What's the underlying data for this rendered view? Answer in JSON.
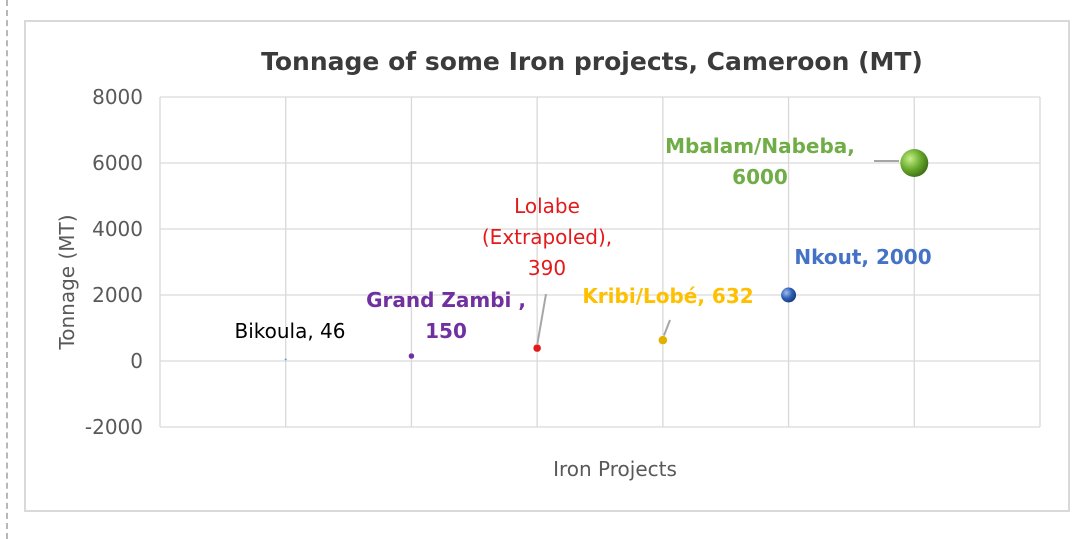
{
  "chart_data": {
    "type": "scatter",
    "title": "Tonnage of some Iron projects, Cameroon (MT)",
    "xlabel": "Iron Projects",
    "ylabel": "Tonnage (MT)",
    "ylim": [
      -2000,
      8000
    ],
    "yticks": [
      8000,
      6000,
      4000,
      2000,
      0,
      -2000
    ],
    "xlim": [
      0,
      7
    ],
    "grid": true,
    "points": [
      {
        "x": 1,
        "y": 46,
        "label_lines": [
          "Bikoula, 46"
        ],
        "color": "#5b9bd5",
        "label_color": "#000000",
        "bold": false
      },
      {
        "x": 2,
        "y": 150,
        "label_lines": [
          "Grand Zambi ,",
          "150"
        ],
        "color": "#7030a0",
        "label_color": "#7030a0",
        "bold": true
      },
      {
        "x": 3,
        "y": 390,
        "label_lines": [
          "Lolabe",
          "(Extrapoled),",
          "390"
        ],
        "color": "#e31a1c",
        "label_color": "#e31a1c",
        "bold": false
      },
      {
        "x": 4,
        "y": 632,
        "label_lines": [
          "Kribi/Lobé, 632"
        ],
        "color": "#e2b100",
        "label_color": "#ffc000",
        "bold": true
      },
      {
        "x": 5,
        "y": 2000,
        "label_lines": [
          "Nkout, 2000"
        ],
        "color": "#2e5fb5",
        "label_color": "#4472c4",
        "bold": true
      },
      {
        "x": 6,
        "y": 6000,
        "label_lines": [
          "Mbalam/Nabeba,",
          "6000"
        ],
        "color": "#6aaa2e",
        "label_color": "#70ad47",
        "bold": true
      }
    ]
  }
}
